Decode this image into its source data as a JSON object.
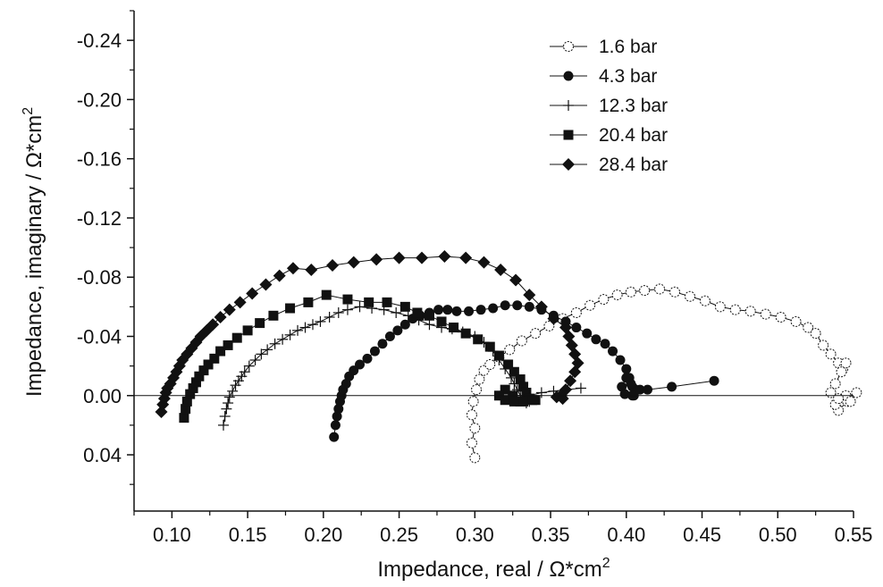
{
  "chart_data": {
    "type": "scatter",
    "xlabel": "Impedance, real / Ω*cm",
    "xlabel_sup": "2",
    "ylabel": "Impedance, imaginary / Ω*cm",
    "ylabel_sup": "2",
    "xlim": [
      0.075,
      0.55
    ],
    "ylim": [
      -0.26,
      0.078
    ],
    "x_ticks": [
      0.1,
      0.15,
      0.2,
      0.25,
      0.3,
      0.35,
      0.4,
      0.45,
      0.5,
      0.55
    ],
    "x_tick_labels": [
      "0.10",
      "0.15",
      "0.20",
      "0.25",
      "0.30",
      "0.35",
      "0.40",
      "0.45",
      "0.50",
      "0.55"
    ],
    "y_ticks": [
      -0.24,
      -0.2,
      -0.16,
      -0.12,
      -0.08,
      -0.04,
      0.0,
      0.04
    ],
    "y_tick_labels": [
      "-0.24",
      "-0.20",
      "-0.16",
      "-0.12",
      "-0.08",
      "-0.04",
      "0.00",
      "0.04"
    ],
    "zero_line": true,
    "grid": false,
    "legend_position": "top-right",
    "series": [
      {
        "name": "1.6 bar",
        "marker": "open-circle",
        "x": [
          0.3,
          0.298,
          0.3,
          0.298,
          0.299,
          0.301,
          0.303,
          0.306,
          0.31,
          0.316,
          0.323,
          0.331,
          0.34,
          0.349,
          0.358,
          0.367,
          0.376,
          0.385,
          0.394,
          0.403,
          0.412,
          0.422,
          0.432,
          0.442,
          0.452,
          0.462,
          0.472,
          0.482,
          0.492,
          0.502,
          0.512,
          0.52,
          0.525,
          0.53,
          0.535,
          0.54,
          0.543,
          0.545,
          0.542,
          0.538,
          0.535,
          0.545,
          0.552,
          0.546,
          0.54,
          0.538,
          0.545,
          0.548,
          0.54
        ],
        "y": [
          0.042,
          0.032,
          0.022,
          0.013,
          0.004,
          -0.004,
          -0.011,
          -0.017,
          -0.021,
          -0.026,
          -0.031,
          -0.037,
          -0.042,
          -0.047,
          -0.052,
          -0.056,
          -0.061,
          -0.065,
          -0.068,
          -0.07,
          -0.071,
          -0.072,
          -0.07,
          -0.067,
          -0.064,
          -0.06,
          -0.058,
          -0.057,
          -0.055,
          -0.053,
          -0.05,
          -0.046,
          -0.042,
          -0.034,
          -0.028,
          -0.022,
          -0.018,
          -0.022,
          -0.016,
          -0.008,
          -0.002,
          0.002,
          -0.002,
          0.004,
          0.01,
          0.006,
          0.0,
          0.004,
          0.002
        ]
      },
      {
        "name": "4.3 bar",
        "marker": "filled-circle",
        "x": [
          0.207,
          0.208,
          0.209,
          0.21,
          0.211,
          0.212,
          0.213,
          0.215,
          0.217,
          0.22,
          0.224,
          0.229,
          0.234,
          0.239,
          0.244,
          0.249,
          0.254,
          0.259,
          0.264,
          0.27,
          0.276,
          0.282,
          0.288,
          0.296,
          0.304,
          0.312,
          0.32,
          0.328,
          0.336,
          0.344,
          0.352,
          0.36,
          0.367,
          0.374,
          0.38,
          0.386,
          0.391,
          0.396,
          0.4,
          0.402,
          0.404,
          0.405,
          0.406,
          0.403,
          0.4,
          0.397,
          0.399,
          0.404,
          0.409,
          0.414,
          0.43,
          0.458
        ],
        "y": [
          0.028,
          0.02,
          0.014,
          0.009,
          0.004,
          0.0,
          -0.004,
          -0.008,
          -0.013,
          -0.017,
          -0.021,
          -0.025,
          -0.03,
          -0.035,
          -0.04,
          -0.044,
          -0.048,
          -0.052,
          -0.054,
          -0.056,
          -0.058,
          -0.058,
          -0.057,
          -0.057,
          -0.058,
          -0.059,
          -0.061,
          -0.061,
          -0.06,
          -0.058,
          -0.054,
          -0.05,
          -0.046,
          -0.042,
          -0.038,
          -0.035,
          -0.03,
          -0.024,
          -0.018,
          -0.012,
          -0.006,
          0.0,
          -0.004,
          -0.008,
          -0.012,
          -0.006,
          -0.001,
          0.0,
          -0.004,
          -0.004,
          -0.006,
          -0.01
        ]
      },
      {
        "name": "12.3 bar",
        "marker": "cross",
        "x": [
          0.134,
          0.135,
          0.136,
          0.137,
          0.138,
          0.14,
          0.142,
          0.144,
          0.146,
          0.148,
          0.151,
          0.155,
          0.159,
          0.163,
          0.168,
          0.173,
          0.178,
          0.183,
          0.188,
          0.193,
          0.198,
          0.204,
          0.21,
          0.216,
          0.224,
          0.232,
          0.24,
          0.248,
          0.256,
          0.263,
          0.27,
          0.278,
          0.285,
          0.292,
          0.3,
          0.306,
          0.312,
          0.316,
          0.32,
          0.324,
          0.326,
          0.328,
          0.33,
          0.332,
          0.334,
          0.336,
          0.326,
          0.33,
          0.336,
          0.344,
          0.352,
          0.36,
          0.37
        ],
        "y": [
          0.02,
          0.014,
          0.009,
          0.005,
          0.001,
          -0.003,
          -0.007,
          -0.01,
          -0.013,
          -0.016,
          -0.02,
          -0.024,
          -0.028,
          -0.031,
          -0.035,
          -0.038,
          -0.041,
          -0.044,
          -0.046,
          -0.048,
          -0.05,
          -0.053,
          -0.056,
          -0.058,
          -0.06,
          -0.059,
          -0.058,
          -0.056,
          -0.054,
          -0.051,
          -0.048,
          -0.046,
          -0.045,
          -0.043,
          -0.04,
          -0.036,
          -0.03,
          -0.024,
          -0.018,
          -0.012,
          -0.008,
          -0.004,
          0.0,
          0.003,
          0.005,
          0.004,
          0.0,
          0.002,
          0.0,
          -0.002,
          -0.003,
          -0.004,
          -0.005
        ]
      },
      {
        "name": "20.4 bar",
        "marker": "filled-square",
        "x": [
          0.108,
          0.109,
          0.11,
          0.112,
          0.114,
          0.116,
          0.118,
          0.121,
          0.124,
          0.128,
          0.132,
          0.137,
          0.143,
          0.15,
          0.158,
          0.167,
          0.178,
          0.19,
          0.202,
          0.216,
          0.23,
          0.242,
          0.254,
          0.262,
          0.27,
          0.278,
          0.286,
          0.294,
          0.302,
          0.31,
          0.316,
          0.322,
          0.326,
          0.33,
          0.332,
          0.334,
          0.336,
          0.34,
          0.33,
          0.325,
          0.32,
          0.316,
          0.32,
          0.326,
          0.332,
          0.338
        ],
        "y": [
          0.015,
          0.009,
          0.004,
          -0.001,
          -0.005,
          -0.009,
          -0.013,
          -0.017,
          -0.021,
          -0.025,
          -0.03,
          -0.034,
          -0.039,
          -0.044,
          -0.049,
          -0.054,
          -0.059,
          -0.063,
          -0.068,
          -0.065,
          -0.063,
          -0.063,
          -0.06,
          -0.056,
          -0.054,
          -0.05,
          -0.046,
          -0.042,
          -0.038,
          -0.033,
          -0.027,
          -0.021,
          -0.016,
          -0.011,
          -0.006,
          -0.002,
          0.002,
          0.003,
          0.004,
          0.0,
          -0.004,
          0.0,
          0.003,
          0.004,
          0.004,
          0.003
        ]
      },
      {
        "name": "28.4 bar",
        "marker": "filled-diamond",
        "x": [
          0.093,
          0.094,
          0.095,
          0.096,
          0.097,
          0.099,
          0.101,
          0.103,
          0.105,
          0.107,
          0.11,
          0.113,
          0.116,
          0.119,
          0.123,
          0.127,
          0.132,
          0.138,
          0.145,
          0.153,
          0.162,
          0.171,
          0.18,
          0.192,
          0.206,
          0.22,
          0.235,
          0.25,
          0.265,
          0.28,
          0.294,
          0.306,
          0.317,
          0.327,
          0.336,
          0.344,
          0.352,
          0.36,
          0.362,
          0.364,
          0.366,
          0.368,
          0.366,
          0.363,
          0.36,
          0.357,
          0.354,
          0.358
        ],
        "y": [
          0.011,
          0.006,
          0.002,
          -0.002,
          -0.005,
          -0.008,
          -0.012,
          -0.016,
          -0.02,
          -0.024,
          -0.028,
          -0.032,
          -0.036,
          -0.04,
          -0.044,
          -0.048,
          -0.053,
          -0.058,
          -0.063,
          -0.069,
          -0.075,
          -0.081,
          -0.086,
          -0.085,
          -0.088,
          -0.09,
          -0.092,
          -0.093,
          -0.093,
          -0.094,
          -0.093,
          -0.09,
          -0.085,
          -0.078,
          -0.068,
          -0.06,
          -0.052,
          -0.046,
          -0.04,
          -0.034,
          -0.028,
          -0.022,
          -0.016,
          -0.01,
          -0.004,
          0.0,
          0.001,
          0.002
        ]
      }
    ]
  }
}
